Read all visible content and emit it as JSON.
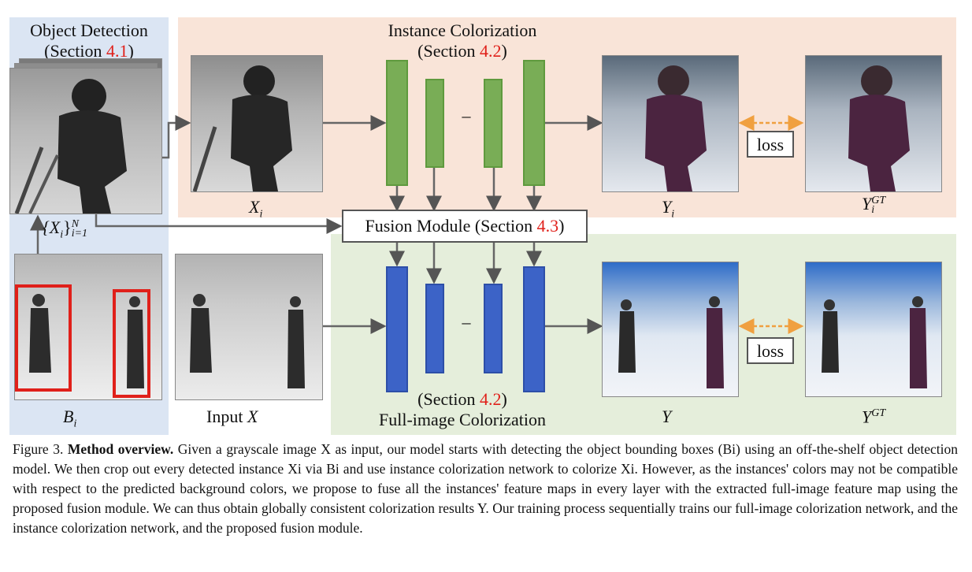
{
  "labels": {
    "object_detection": "Object Detection",
    "section_word": "(Section ",
    "section_close": ")",
    "sec_41": "4.1",
    "instance_colorization": "Instance Colorization",
    "sec_42": "4.2",
    "fusion_module_prefix": "Fusion Module (Section ",
    "sec_43": "4.3",
    "full_image_colorization": "Full-image Colorization",
    "xi": "X",
    "xi_sub": "i",
    "yi": "Y",
    "yi_sub": "i",
    "yigt": "Y",
    "yigt_sub": "i",
    "gt_sup": "GT",
    "bi": "B",
    "bi_sub": "i",
    "input_x_text": "Input ",
    "input_x_var": "X",
    "y": "Y",
    "ygt": "Y",
    "set_xi": "{X",
    "set_xi_sub": "i",
    "set_xi_close": "}",
    "set_sup": "N",
    "set_sub": "i=1",
    "loss": "loss",
    "dots": "–"
  },
  "caption": {
    "prefix": "Figure 3. ",
    "bold": "Method overview.",
    "text": " Given a grayscale image X as input, our model starts with detecting the object bounding boxes (Bi) using an off-the-shelf object detection model. We then crop out every detected instance Xi via Bi and use instance colorization network to colorize Xi. However, as the instances' colors may not be compatible with respect to the predicted background colors, we propose to fuse all the instances' feature maps in every layer with the extracted full-image feature map using the proposed fusion module. We can thus obtain globally consistent colorization results Y. Our training process sequentially trains our full-image colorization network, and the instance colorization network, and the proposed fusion module."
  },
  "colors": {
    "detection_bg": "#dbe5f3",
    "instance_bg": "#f9e4d8",
    "full_bg": "#e5eedb",
    "green_bar": "#79ad56",
    "blue_bar": "#3c63c7",
    "section_red": "#e0201a",
    "loss_arrow": "#f0a040"
  }
}
